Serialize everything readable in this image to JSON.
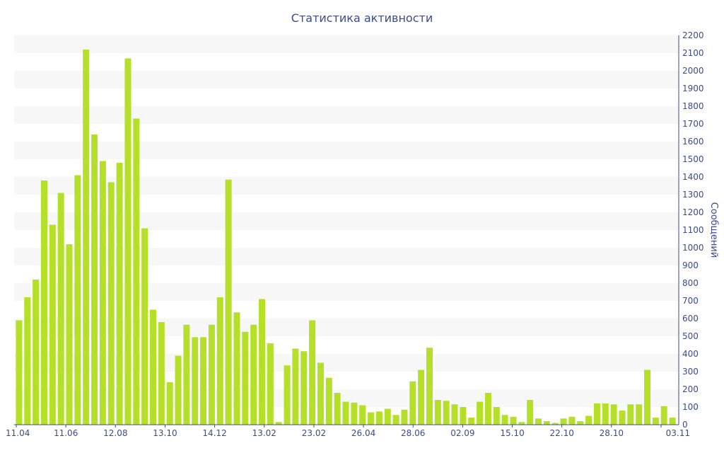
{
  "chart_data": {
    "type": "bar",
    "title": "Статистика активности",
    "xlabel": "",
    "ylabel": "Сообщений",
    "ylim": [
      0,
      2200
    ],
    "ytick_step": 100,
    "x_tick_labels": [
      "11.04",
      "11.06",
      "12.08",
      "13.10",
      "14.12",
      "13.02",
      "23.02",
      "26.04",
      "28.06",
      "02.09",
      "15.10",
      "22.10",
      "28.10",
      "03.11"
    ],
    "grid": "alternating horizontal bands",
    "colors": {
      "bar": "#b5e02a",
      "text": "#3d4a8c",
      "band": "#f7f7f7"
    },
    "values": [
      590,
      720,
      820,
      1380,
      1130,
      1310,
      1020,
      1410,
      2120,
      1640,
      1490,
      1370,
      1480,
      2070,
      1730,
      1110,
      650,
      580,
      240,
      390,
      565,
      495,
      495,
      565,
      720,
      1385,
      635,
      525,
      565,
      710,
      460,
      15,
      335,
      430,
      415,
      590,
      350,
      265,
      180,
      130,
      125,
      110,
      70,
      75,
      90,
      55,
      85,
      245,
      310,
      435,
      140,
      135,
      115,
      100,
      40,
      130,
      180,
      100,
      55,
      45,
      15,
      140,
      35,
      20,
      10,
      35,
      45,
      20,
      50,
      120,
      120,
      115,
      80,
      115,
      115,
      310,
      40,
      105,
      40
    ]
  }
}
